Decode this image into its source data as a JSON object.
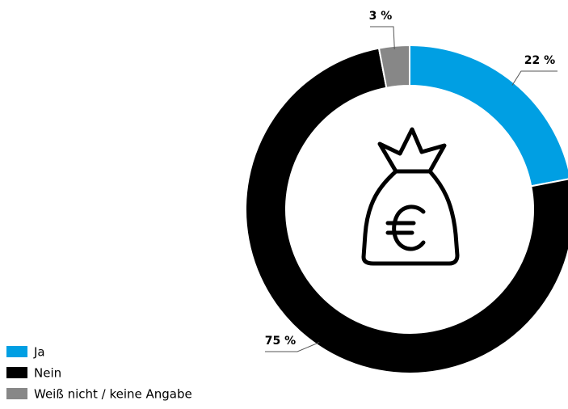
{
  "chart_data": {
    "type": "donut",
    "categories": [
      "Ja",
      "Nein",
      "Weiß nicht / keine Angabe"
    ],
    "values": [
      22,
      75,
      3
    ],
    "value_labels": [
      "22 %",
      "75 %",
      "3 %"
    ],
    "colors": [
      "#009fe3",
      "#000000",
      "#878787"
    ],
    "legend": "bottom-left"
  }
}
